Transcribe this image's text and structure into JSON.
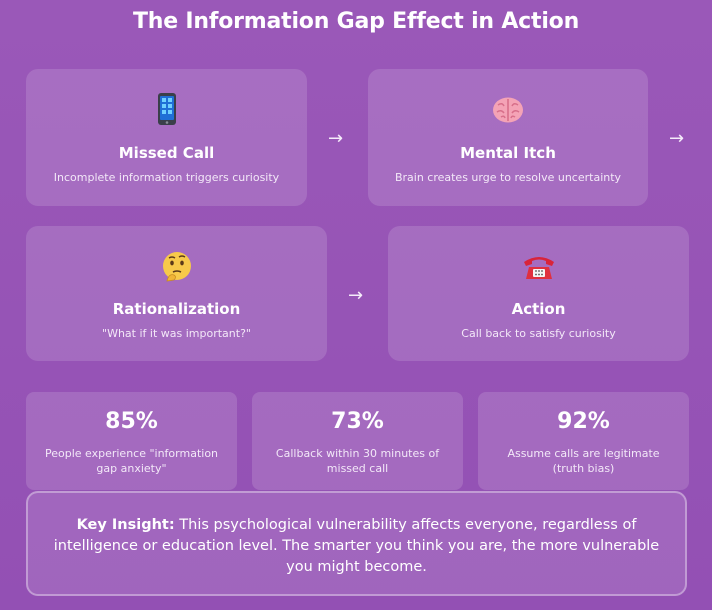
{
  "title": "The Information Gap Effect in Action",
  "steps": [
    {
      "icon": "mobile-phone-icon",
      "name": "Missed Call",
      "desc": "Incomplete information triggers curiosity"
    },
    {
      "icon": "brain-icon",
      "name": "Mental Itch",
      "desc": "Brain creates urge to resolve uncertainty"
    },
    {
      "icon": "thinking-face-icon",
      "name": "Rationalization",
      "desc": "\"What if it was important?\""
    },
    {
      "icon": "telephone-icon",
      "name": "Action",
      "desc": "Call back to satisfy curiosity"
    }
  ],
  "arrow": "→",
  "stats": [
    {
      "value": "85%",
      "label": "People experience \"information gap anxiety\""
    },
    {
      "value": "73%",
      "label": "Callback within 30 minutes of missed call"
    },
    {
      "value": "92%",
      "label": "Assume calls are legitimate (truth bias)"
    }
  ],
  "insight": {
    "lead": "Key Insight:",
    "text": " This psychological vulnerability affects everyone, regardless of intelligence or education level. The smarter you think you are, the more vulnerable you might become."
  },
  "colors": {
    "background": "#9654b6",
    "card": "rgba(255,255,255,0.14)",
    "text": "#ffffff"
  }
}
